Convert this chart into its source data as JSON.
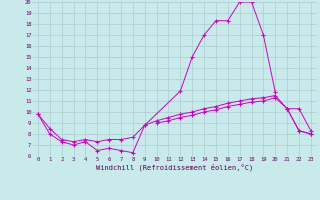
{
  "x": [
    0,
    1,
    2,
    3,
    4,
    5,
    6,
    7,
    8,
    9,
    10,
    11,
    12,
    13,
    14,
    15,
    16,
    17,
    18,
    19,
    20,
    21,
    22,
    23
  ],
  "line1": [
    9.8,
    8.0,
    7.3,
    7.0,
    7.3,
    6.5,
    6.7,
    6.5,
    6.3,
    8.8,
    null,
    null,
    11.9,
    15.0,
    17.0,
    18.3,
    18.3,
    20.0,
    20.0,
    17.0,
    11.8,
    null,
    null,
    null
  ],
  "line2": [
    null,
    null,
    null,
    null,
    null,
    null,
    null,
    null,
    null,
    null,
    null,
    null,
    null,
    null,
    null,
    null,
    null,
    null,
    null,
    null,
    null,
    10.3,
    10.3,
    8.3
  ],
  "line3": [
    9.8,
    8.5,
    7.5,
    7.3,
    7.5,
    7.3,
    7.5,
    7.5,
    7.7,
    8.8,
    9.2,
    9.5,
    9.8,
    10.0,
    10.3,
    10.5,
    10.8,
    11.0,
    11.2,
    11.3,
    11.5,
    10.3,
    8.3,
    8.0
  ],
  "line4": [
    null,
    null,
    null,
    null,
    null,
    null,
    null,
    null,
    null,
    null,
    9.0,
    9.2,
    9.5,
    9.7,
    10.0,
    10.2,
    10.5,
    10.7,
    10.9,
    11.0,
    11.3,
    10.3,
    8.3,
    8.0
  ],
  "color": "#cc00cc",
  "bg_color": "#c8eaea",
  "grid_color": "#aacccc",
  "xlabel": "Windchill (Refroidissement éolien,°C)",
  "ylim": [
    6,
    20
  ],
  "xlim": [
    -0.5,
    23.5
  ],
  "yticks": [
    6,
    7,
    8,
    9,
    10,
    11,
    12,
    13,
    14,
    15,
    16,
    17,
    18,
    19,
    20
  ],
  "xticks": [
    0,
    1,
    2,
    3,
    4,
    5,
    6,
    7,
    8,
    9,
    10,
    11,
    12,
    13,
    14,
    15,
    16,
    17,
    18,
    19,
    20,
    21,
    22,
    23
  ]
}
